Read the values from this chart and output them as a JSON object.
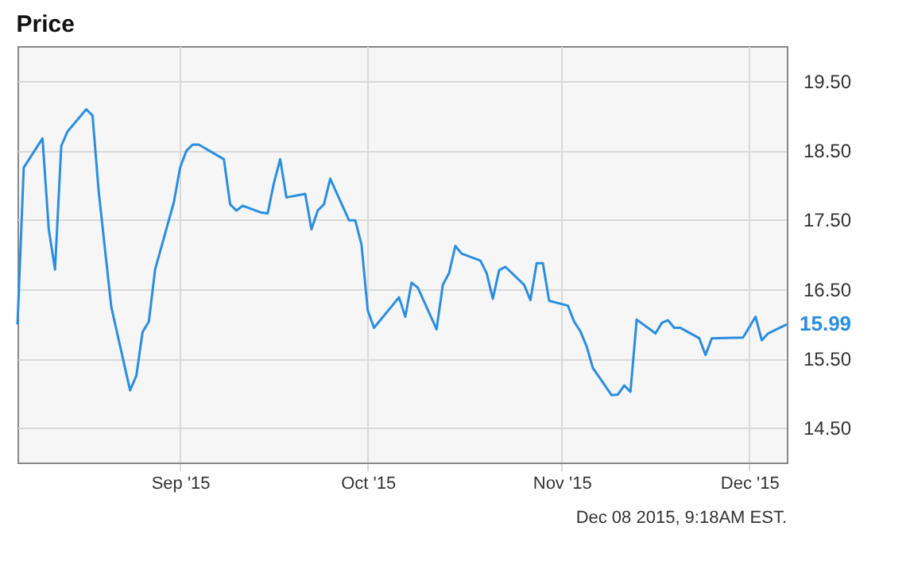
{
  "chart_data": {
    "type": "line",
    "title": "Price",
    "x": [
      "2015-08-06",
      "2015-08-07",
      "2015-08-10",
      "2015-08-11",
      "2015-08-12",
      "2015-08-13",
      "2015-08-14",
      "2015-08-17",
      "2015-08-18",
      "2015-08-19",
      "2015-08-21",
      "2015-08-24",
      "2015-08-25",
      "2015-08-26",
      "2015-08-27",
      "2015-08-28",
      "2015-08-31",
      "2015-09-01",
      "2015-09-02",
      "2015-09-03",
      "2015-09-04",
      "2015-09-08",
      "2015-09-09",
      "2015-09-10",
      "2015-09-11",
      "2015-09-14",
      "2015-09-15",
      "2015-09-16",
      "2015-09-17",
      "2015-09-18",
      "2015-09-21",
      "2015-09-22",
      "2015-09-23",
      "2015-09-24",
      "2015-09-25",
      "2015-09-28",
      "2015-09-29",
      "2015-09-30",
      "2015-10-01",
      "2015-10-02",
      "2015-10-06",
      "2015-10-07",
      "2015-10-08",
      "2015-10-09",
      "2015-10-12",
      "2015-10-13",
      "2015-10-14",
      "2015-10-15",
      "2015-10-16",
      "2015-10-19",
      "2015-10-20",
      "2015-10-21",
      "2015-10-22",
      "2015-10-23",
      "2015-10-26",
      "2015-10-27",
      "2015-10-28",
      "2015-10-29",
      "2015-10-30",
      "2015-11-02",
      "2015-11-03",
      "2015-11-04",
      "2015-11-05",
      "2015-11-06",
      "2015-11-09",
      "2015-11-10",
      "2015-11-11",
      "2015-11-12",
      "2015-11-13",
      "2015-11-16",
      "2015-11-17",
      "2015-11-18",
      "2015-11-19",
      "2015-11-20",
      "2015-11-23",
      "2015-11-24",
      "2015-11-25",
      "2015-11-30",
      "2015-12-02",
      "2015-12-03",
      "2015-12-04",
      "2015-12-07"
    ],
    "series": [
      {
        "color": "#2a8ee0",
        "values": [
          15.99,
          18.25,
          18.67,
          17.36,
          16.78,
          18.56,
          18.77,
          19.09,
          19.0,
          17.89,
          16.24,
          15.04,
          15.25,
          15.88,
          16.03,
          16.78,
          17.75,
          18.25,
          18.49,
          18.58,
          18.58,
          18.37,
          17.72,
          17.63,
          17.7,
          17.6,
          17.59,
          18.03,
          18.37,
          17.82,
          17.87,
          17.36,
          17.63,
          17.72,
          18.09,
          17.49,
          17.49,
          17.14,
          16.19,
          15.94,
          16.38,
          16.1,
          16.59,
          16.52,
          15.92,
          16.56,
          16.73,
          17.12,
          17.01,
          16.91,
          16.73,
          16.36,
          16.77,
          16.82,
          16.56,
          16.34,
          16.87,
          16.87,
          16.33,
          16.26,
          16.03,
          15.89,
          15.67,
          15.36,
          14.97,
          14.98,
          15.11,
          15.02,
          16.06,
          15.86,
          16.01,
          16.05,
          15.94,
          15.94,
          15.79,
          15.55,
          15.79,
          15.8,
          16.1,
          15.76,
          15.86,
          15.99
        ]
      }
    ],
    "xlim": [
      "2015-08-06",
      "2015-12-07"
    ],
    "xticks": [
      {
        "value": "2015-09-01",
        "label": "Sep '15"
      },
      {
        "value": "2015-10-01",
        "label": "Oct '15"
      },
      {
        "value": "2015-11-01",
        "label": "Nov '15"
      },
      {
        "value": "2015-12-01",
        "label": "Dec '15"
      }
    ],
    "ylim": [
      14,
      20
    ],
    "yticks": [
      {
        "value": 14.5,
        "label": "14.50"
      },
      {
        "value": 15.5,
        "label": "15.50"
      },
      {
        "value": 16.5,
        "label": "16.50"
      },
      {
        "value": 17.5,
        "label": "17.50"
      },
      {
        "value": 18.5,
        "label": "18.50"
      },
      {
        "value": 19.5,
        "label": "19.50"
      }
    ],
    "grid": true,
    "annotations": [
      {
        "text": "15.99",
        "x": "2015-12-07",
        "y": 15.99
      },
      "Dec 08 2015, 9:18AM EST."
    ]
  }
}
